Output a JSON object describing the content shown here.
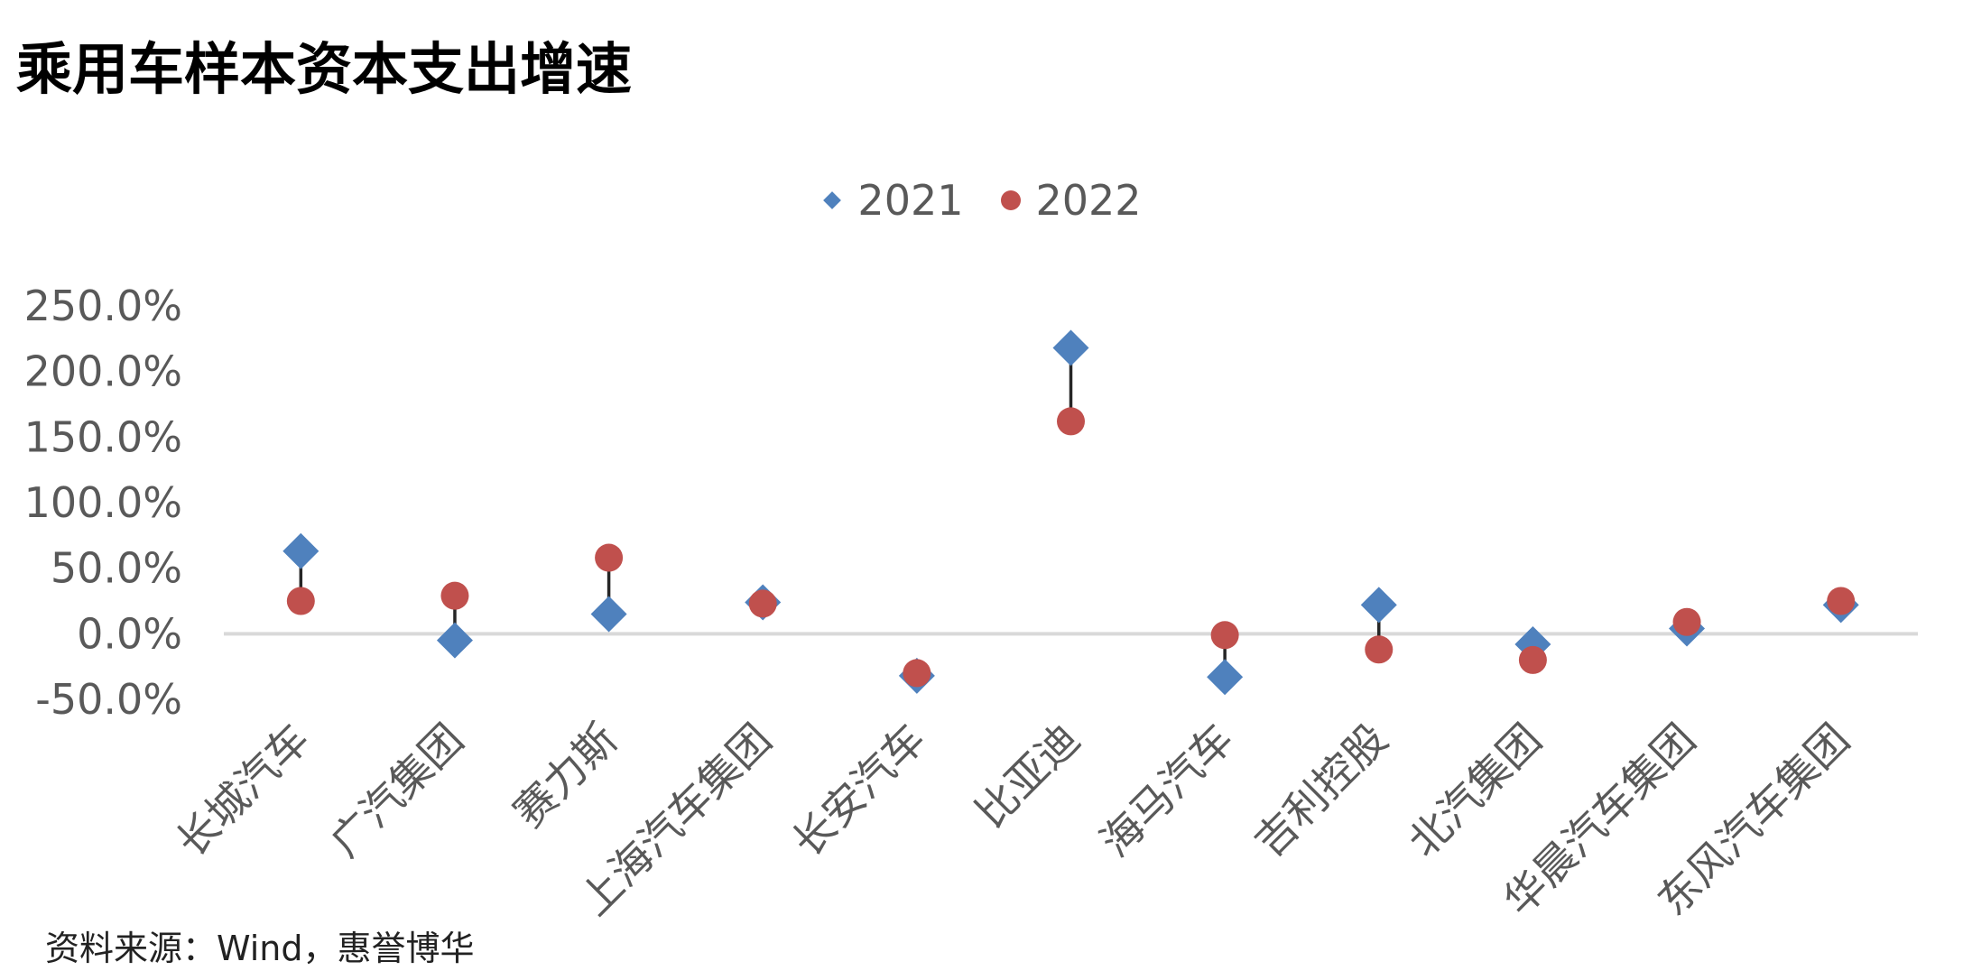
{
  "chart_data": {
    "type": "scatter",
    "title": "乘用车样本资本支出增速",
    "categories": [
      "长城汽车",
      "广汽集团",
      "赛力斯",
      "上海汽车集团",
      "长安汽车",
      "比亚迪",
      "海马汽车",
      "吉利控股",
      "北汽集团",
      "华晨汽车集团",
      "东风汽车集团"
    ],
    "series": [
      {
        "name": "2021",
        "marker": "diamond",
        "color": "#4F81BD",
        "values": [
          63,
          -5,
          15,
          24,
          -32,
          218,
          -33,
          22,
          -8,
          4,
          22
        ]
      },
      {
        "name": "2022",
        "marker": "circle",
        "color": "#C0504D",
        "values": [
          25,
          29,
          58,
          23,
          -30,
          162,
          -1,
          -12,
          -20,
          9,
          25
        ]
      }
    ],
    "ylim": [
      -50,
      250
    ],
    "yticks": [
      "250.0%",
      "200.0%",
      "150.0%",
      "100.0%",
      "50.0%",
      "0.0%",
      "-50.0%"
    ],
    "xlabel": "",
    "ylabel": "",
    "legend": "top-center",
    "grid": false
  },
  "source_text": "资料来源：Wind，惠誉博华"
}
